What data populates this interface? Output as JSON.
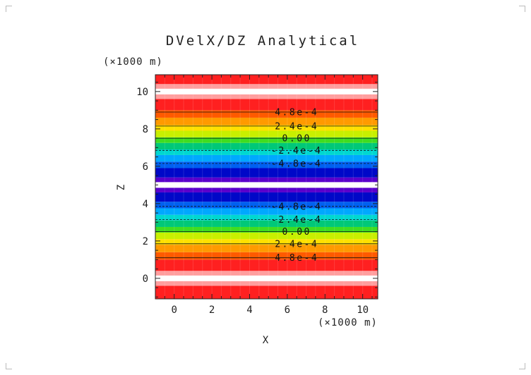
{
  "chart_data": {
    "type": "heatmap",
    "title": "DVelX/DZ Analytical",
    "xlabel": "X",
    "ylabel": "Z",
    "x_unit": "(×1000 m)",
    "y_unit": "(×1000 m)",
    "xlim": [
      -1.0,
      10.8
    ],
    "ylim": [
      -1.1,
      10.9
    ],
    "x_ticks": [
      "0",
      "2",
      "4",
      "6",
      "8",
      "10"
    ],
    "y_ticks": [
      "0",
      "2",
      "4",
      "6",
      "8",
      "10"
    ],
    "bands": [
      {
        "z0": -1.1,
        "z1": -0.4,
        "color": "#ff2020"
      },
      {
        "z0": -0.4,
        "z1": -0.15,
        "color": "#ff9e9e"
      },
      {
        "z0": -0.15,
        "z1": 0.15,
        "color": "#ffffff"
      },
      {
        "z0": 0.15,
        "z1": 0.4,
        "color": "#ff9e9e"
      },
      {
        "z0": 0.4,
        "z1": 1.0,
        "color": "#ff2020"
      },
      {
        "z0": 1.0,
        "z1": 1.4,
        "color": "#ff5a00"
      },
      {
        "z0": 1.4,
        "z1": 1.8,
        "color": "#ff9a00"
      },
      {
        "z0": 1.8,
        "z1": 2.1,
        "color": "#ffe000"
      },
      {
        "z0": 2.1,
        "z1": 2.45,
        "color": "#c8f000"
      },
      {
        "z0": 2.45,
        "z1": 2.75,
        "color": "#40dd20"
      },
      {
        "z0": 2.75,
        "z1": 3.1,
        "color": "#00c878"
      },
      {
        "z0": 3.1,
        "z1": 3.4,
        "color": "#00d8d0"
      },
      {
        "z0": 3.4,
        "z1": 3.75,
        "color": "#00a8ff"
      },
      {
        "z0": 3.75,
        "z1": 4.1,
        "color": "#0060f0"
      },
      {
        "z0": 4.1,
        "z1": 4.6,
        "color": "#0008c8"
      },
      {
        "z0": 4.6,
        "z1": 4.85,
        "color": "#5a00cc"
      },
      {
        "z0": 4.85,
        "z1": 5.15,
        "color": "#ffffff"
      },
      {
        "z0": 5.15,
        "z1": 5.4,
        "color": "#5a00cc"
      },
      {
        "z0": 5.4,
        "z1": 5.9,
        "color": "#0008c8"
      },
      {
        "z0": 5.9,
        "z1": 6.25,
        "color": "#0060f0"
      },
      {
        "z0": 6.25,
        "z1": 6.6,
        "color": "#00a8ff"
      },
      {
        "z0": 6.6,
        "z1": 6.9,
        "color": "#00d8d0"
      },
      {
        "z0": 6.9,
        "z1": 7.25,
        "color": "#00c878"
      },
      {
        "z0": 7.25,
        "z1": 7.55,
        "color": "#40dd20"
      },
      {
        "z0": 7.55,
        "z1": 7.9,
        "color": "#c8f000"
      },
      {
        "z0": 7.9,
        "z1": 8.2,
        "color": "#ffe000"
      },
      {
        "z0": 8.2,
        "z1": 8.6,
        "color": "#ff9a00"
      },
      {
        "z0": 8.6,
        "z1": 9.0,
        "color": "#ff5a00"
      },
      {
        "z0": 9.0,
        "z1": 9.6,
        "color": "#ff2020"
      },
      {
        "z0": 9.6,
        "z1": 9.85,
        "color": "#ff9e9e"
      },
      {
        "z0": 9.85,
        "z1": 10.15,
        "color": "#ffffff"
      },
      {
        "z0": 10.15,
        "z1": 10.4,
        "color": "#ff9e9e"
      },
      {
        "z0": 10.4,
        "z1": 10.9,
        "color": "#ff2020"
      }
    ],
    "contours": [
      {
        "z": 1.1,
        "label": "4.8e-4",
        "dashed": false
      },
      {
        "z": 1.85,
        "label": "2.4e-4",
        "dashed": false
      },
      {
        "z": 2.5,
        "label": "0.00",
        "dashed": false
      },
      {
        "z": 3.15,
        "label": "-2.4e-4",
        "dashed": true
      },
      {
        "z": 3.85,
        "label": "-4.8e-4",
        "dashed": true
      },
      {
        "z": 6.15,
        "label": "-4.8e-4",
        "dashed": true
      },
      {
        "z": 6.85,
        "label": "-2.4e-4",
        "dashed": true
      },
      {
        "z": 7.5,
        "label": "0.00",
        "dashed": false
      },
      {
        "z": 8.15,
        "label": "2.4e-4",
        "dashed": false
      },
      {
        "z": 8.9,
        "label": "4.8e-4",
        "dashed": false
      }
    ],
    "contour_label_x": 6.5,
    "grid": false,
    "legend": "none"
  }
}
